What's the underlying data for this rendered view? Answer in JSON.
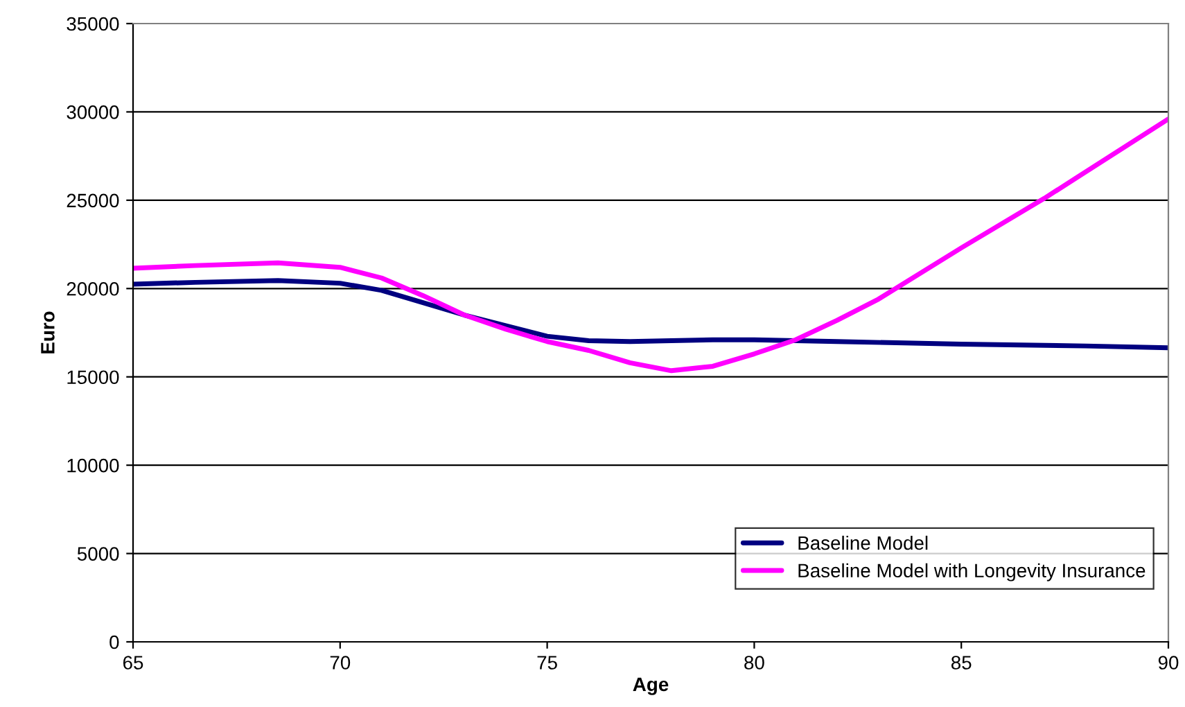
{
  "chart_data": {
    "type": "line",
    "xlabel": "Age",
    "ylabel": "Euro",
    "xlim": [
      65,
      90
    ],
    "xticks": [
      65,
      70,
      75,
      80,
      85,
      90
    ],
    "ylim": [
      0,
      35000
    ],
    "yticks": [
      0,
      5000,
      10000,
      15000,
      20000,
      25000,
      30000,
      35000
    ],
    "grid": "y",
    "legend": "bottom right",
    "marker": "none",
    "line_style": "solid",
    "series": [
      {
        "name": "Baseline Model",
        "color": "#000080",
        "x": [
          65,
          66.5,
          68.5,
          70,
          71,
          72,
          73,
          74,
          75,
          76,
          77,
          78,
          79,
          80,
          82,
          85,
          88,
          90
        ],
        "values": [
          20250,
          20350,
          20450,
          20300,
          19900,
          19200,
          18500,
          17900,
          17300,
          17050,
          17000,
          17050,
          17100,
          17100,
          17000,
          16850,
          16750,
          16650
        ]
      },
      {
        "name": "Baseline Model with Longevity Insurance",
        "color": "#ff00ff",
        "x": [
          65,
          66.5,
          68.5,
          70,
          71,
          72,
          73,
          74,
          75,
          76,
          77,
          78,
          79,
          80,
          81,
          82,
          83,
          85,
          87,
          90
        ],
        "values": [
          21150,
          21300,
          21450,
          21200,
          20600,
          19600,
          18500,
          17700,
          17000,
          16500,
          15800,
          15350,
          15600,
          16300,
          17100,
          18200,
          19400,
          22300,
          25100,
          29600
        ]
      }
    ]
  }
}
